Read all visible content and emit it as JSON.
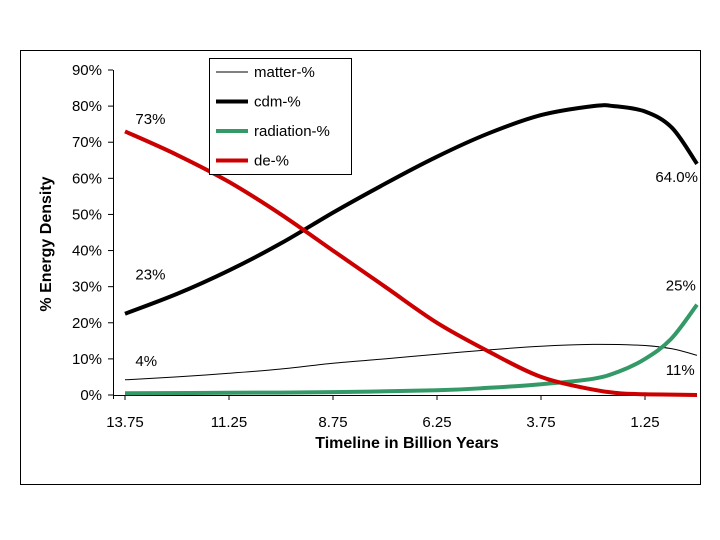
{
  "chart_data": {
    "type": "line",
    "title": "",
    "xlabel": "Timeline in Billion Years",
    "ylabel": "% Energy Density",
    "x_reversed": true,
    "xlim": [
      13.75,
      0
    ],
    "ylim": [
      0,
      90
    ],
    "x_ticks": [
      "13.75",
      "11.25",
      "8.75",
      "6.25",
      "3.75",
      "1.25"
    ],
    "x_tick_values": [
      13.75,
      11.25,
      8.75,
      6.25,
      3.75,
      1.25
    ],
    "y_ticks": [
      "0%",
      "10%",
      "20%",
      "30%",
      "40%",
      "50%",
      "60%",
      "70%",
      "80%",
      "90%"
    ],
    "y_tick_values": [
      0,
      10,
      20,
      30,
      40,
      50,
      60,
      70,
      80,
      90
    ],
    "grid": false,
    "legend_position": "top-left",
    "series": [
      {
        "name": "matter-%",
        "color": "#000000",
        "style": "thin",
        "x": [
          13.75,
          12.5,
          11.25,
          10,
          8.75,
          7.5,
          6.25,
          5,
          3.75,
          2.5,
          1.25,
          0.6,
          0
        ],
        "values": [
          4.2,
          5,
          6,
          7.2,
          8.8,
          10,
          11.3,
          12.5,
          13.5,
          14,
          13.7,
          12.8,
          11
        ]
      },
      {
        "name": "cdm-%",
        "color": "#000000",
        "style": "thick",
        "x": [
          13.75,
          12.5,
          11.25,
          10,
          8.75,
          7.5,
          6.25,
          5,
          3.75,
          2.5,
          2,
          1.25,
          0.6,
          0
        ],
        "values": [
          22.5,
          28,
          34.5,
          42,
          50.5,
          58.5,
          66,
          72.5,
          77.5,
          80,
          80,
          78.5,
          74,
          64
        ]
      },
      {
        "name": "radiation-%",
        "color": "#339966",
        "style": "thick",
        "x": [
          13.75,
          11.25,
          8.75,
          6.25,
          5,
          3.75,
          2.5,
          1.875,
          1.25,
          0.625,
          0
        ],
        "values": [
          0.5,
          0.6,
          0.8,
          1.3,
          2,
          3,
          4.5,
          6.5,
          10,
          15.5,
          25
        ]
      },
      {
        "name": "de-%",
        "color": "#cc0000",
        "style": "thick",
        "x": [
          13.75,
          12.5,
          11.25,
          10,
          8.75,
          7.5,
          6.25,
          5,
          3.75,
          2.5,
          1.875,
          1.25,
          0.625,
          0
        ],
        "values": [
          73,
          66.5,
          59,
          50,
          40,
          30,
          20,
          12,
          5,
          1.5,
          0.5,
          0.2,
          0.1,
          0
        ]
      }
    ],
    "annotations": [
      {
        "text": "73%",
        "x": 13.5,
        "y": 75
      },
      {
        "text": "23%",
        "x": 13.5,
        "y": 32
      },
      {
        "text": "4%",
        "x": 13.5,
        "y": 8
      },
      {
        "text": "64.0%",
        "x": 1,
        "y": 59
      },
      {
        "text": "25%",
        "x": 0.75,
        "y": 29
      },
      {
        "text": "11%",
        "x": 0.75,
        "y": 5.5
      }
    ]
  }
}
